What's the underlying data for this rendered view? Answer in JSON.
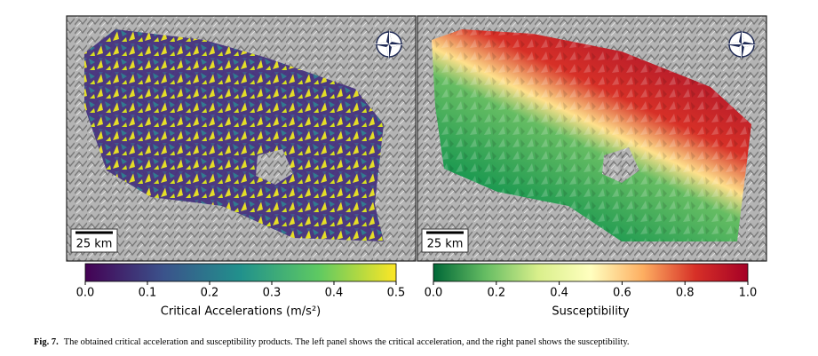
{
  "panels": [
    {
      "scale_bar": "25 km"
    },
    {
      "scale_bar": "25 km"
    }
  ],
  "colorbars": [
    {
      "label": "Critical Accelerations (m/s²)",
      "lim": [
        0,
        0.5
      ],
      "ticks": [
        {
          "value": 0,
          "label": "0.0"
        },
        0.1,
        0.2,
        0.3,
        0.4,
        0.5
      ],
      "cmap": [
        "#440154",
        "#3b528b",
        "#21918c",
        "#5ec962",
        "#fde725"
      ]
    },
    {
      "label": "Susceptibility",
      "lim": [
        0,
        1
      ],
      "ticks": [
        {
          "value": 0,
          "label": "0.0"
        },
        0.2,
        0.4,
        0.6,
        0.8,
        {
          "value": 1,
          "label": "1.0"
        }
      ],
      "cmap": [
        "#006837",
        "#66bd63",
        "#d9ef8b",
        "#ffffbf",
        "#fdae61",
        "#d73027",
        "#a50026"
      ]
    }
  ],
  "caption": {
    "label": "Fig. 7.",
    "text": "The obtained critical acceleration and susceptibility products. The left panel shows the critical acceleration, and the right panel shows the susceptibility."
  }
}
